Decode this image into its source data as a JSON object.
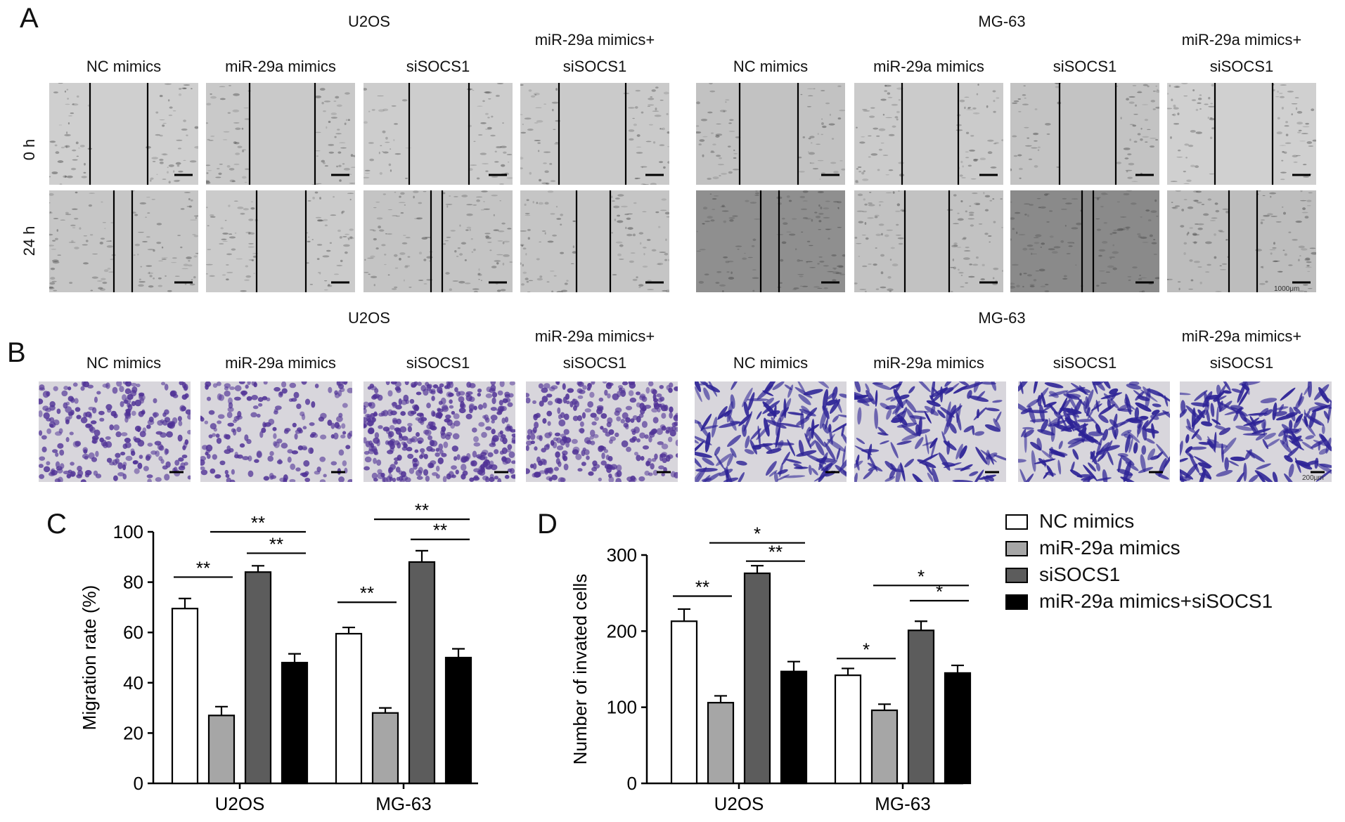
{
  "panel_a": {
    "label": "A",
    "groups": [
      "U2OS",
      "MG-63"
    ],
    "columns": [
      {
        "line1": "",
        "line2": "NC mimics"
      },
      {
        "line1": "",
        "line2": "miR-29a mimics"
      },
      {
        "line1": "",
        "line2": "siSOCS1"
      },
      {
        "line1": "miR-29a mimics+",
        "line2": "siSOCS1"
      },
      {
        "line1": "",
        "line2": "NC mimics"
      },
      {
        "line1": "",
        "line2": "miR-29a mimics"
      },
      {
        "line1": "",
        "line2": "siSOCS1"
      },
      {
        "line1": "miR-29a mimics+",
        "line2": "siSOCS1"
      }
    ],
    "rows": [
      "0 h",
      "24 h"
    ],
    "scale_text": "1000μm"
  },
  "panel_b": {
    "label": "B",
    "groups": [
      "U2OS",
      "MG-63"
    ],
    "columns": [
      {
        "line1": "",
        "line2": "NC mimics"
      },
      {
        "line1": "",
        "line2": "miR-29a mimics"
      },
      {
        "line1": "",
        "line2": "siSOCS1"
      },
      {
        "line1": "miR-29a mimics+",
        "line2": "siSOCS1"
      },
      {
        "line1": "",
        "line2": "NC mimics"
      },
      {
        "line1": "",
        "line2": "miR-29a mimics"
      },
      {
        "line1": "",
        "line2": "siSOCS1"
      },
      {
        "line1": "miR-29a mimics+",
        "line2": "siSOCS1"
      }
    ],
    "scale_text": "200μm"
  },
  "chart_data": [
    {
      "panel": "C",
      "type": "bar",
      "title": "",
      "xlabel": "",
      "ylabel": "Migration rate (%)",
      "ylim": [
        0,
        100
      ],
      "yticks": [
        0,
        20,
        40,
        60,
        80,
        100
      ],
      "categories": [
        "U2OS",
        "MG-63"
      ],
      "series": [
        {
          "name": "NC mimics",
          "values": [
            69.5,
            59.5
          ],
          "errors": [
            4,
            2.5
          ],
          "color": "#ffffff"
        },
        {
          "name": "miR-29a mimics",
          "values": [
            27,
            28
          ],
          "errors": [
            3.5,
            2
          ],
          "color": "#a6a6a6"
        },
        {
          "name": "siSOCS1",
          "values": [
            84,
            88
          ],
          "errors": [
            2.5,
            4.5
          ],
          "color": "#5c5c5c"
        },
        {
          "name": "miR-29a mimics+siSOCS1",
          "values": [
            48,
            50
          ],
          "errors": [
            3.5,
            3.5
          ],
          "color": "#000000"
        }
      ],
      "significance": [
        {
          "category": 0,
          "from": 0,
          "to": 1,
          "label": "**",
          "y": 82
        },
        {
          "category": 0,
          "from": 2,
          "to": 3,
          "label": "**",
          "y": 91.5
        },
        {
          "category": 0,
          "from": 1,
          "to": 3,
          "label": "**",
          "y": 100
        },
        {
          "category": 1,
          "from": 0,
          "to": 1,
          "label": "**",
          "y": 72
        },
        {
          "category": 1,
          "from": 2,
          "to": 3,
          "label": "**",
          "y": 97
        },
        {
          "category": 1,
          "from": 1,
          "to": 3,
          "label": "**",
          "y": 105
        }
      ]
    },
    {
      "panel": "D",
      "type": "bar",
      "title": "",
      "xlabel": "",
      "ylabel": "Number of invated cells",
      "ylim": [
        0,
        300
      ],
      "yticks": [
        0,
        100,
        200,
        300
      ],
      "categories": [
        "U2OS",
        "MG-63"
      ],
      "series": [
        {
          "name": "NC mimics",
          "values": [
            213,
            142
          ],
          "errors": [
            16,
            9
          ],
          "color": "#ffffff"
        },
        {
          "name": "miR-29a mimics",
          "values": [
            106,
            96
          ],
          "errors": [
            9,
            8
          ],
          "color": "#a6a6a6"
        },
        {
          "name": "siSOCS1",
          "values": [
            276,
            201
          ],
          "errors": [
            10,
            12
          ],
          "color": "#5c5c5c"
        },
        {
          "name": "miR-29a mimics+siSOCS1",
          "values": [
            147,
            145
          ],
          "errors": [
            13,
            10
          ],
          "color": "#000000"
        }
      ],
      "significance": [
        {
          "category": 0,
          "from": 0,
          "to": 1,
          "label": "**",
          "y": 246
        },
        {
          "category": 0,
          "from": 2,
          "to": 3,
          "label": "**",
          "y": 292
        },
        {
          "category": 0,
          "from": 1,
          "to": 3,
          "label": "*",
          "y": 316
        },
        {
          "category": 1,
          "from": 0,
          "to": 1,
          "label": "*",
          "y": 164
        },
        {
          "category": 1,
          "from": 2,
          "to": 3,
          "label": "*",
          "y": 240
        },
        {
          "category": 1,
          "from": 1,
          "to": 3,
          "label": "*",
          "y": 260
        }
      ]
    }
  ],
  "legend": {
    "entries": [
      "NC mimics",
      "miR-29a mimics",
      "siSOCS1",
      "miR-29a mimics+siSOCS1"
    ],
    "colors": [
      "#ffffff",
      "#a6a6a6",
      "#5c5c5c",
      "#000000"
    ]
  },
  "panel_c_label": "C",
  "panel_d_label": "D"
}
